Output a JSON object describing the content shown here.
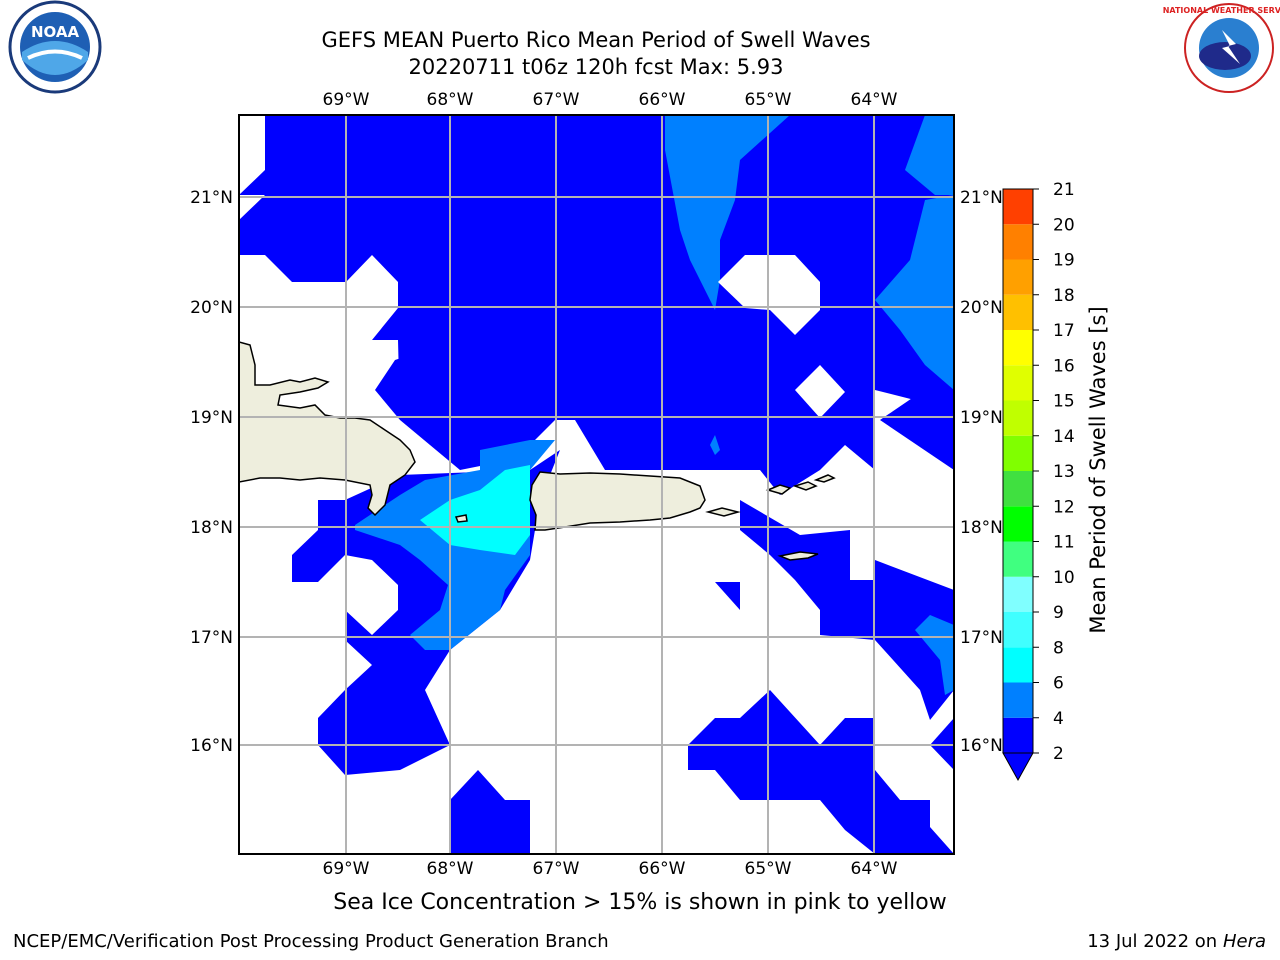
{
  "header": {
    "title_line1": "GEFS MEAN Puerto Rico Mean Period of Swell Waves",
    "title_line2": "20220711 t06z 120h fcst   Max: 5.93"
  },
  "logos": {
    "left": "NOAA",
    "right": "NATIONAL WEATHER SERVICE"
  },
  "map": {
    "lon_labels": [
      "69°W",
      "68°W",
      "67°W",
      "66°W",
      "65°W",
      "64°W"
    ],
    "lat_labels": [
      "21°N",
      "20°N",
      "19°N",
      "18°N",
      "17°N",
      "16°N"
    ],
    "colors": {
      "band_2_4": "#0000ff",
      "band_4_6_outer": "#0080ff",
      "band_4_6_inner": "#00ffff",
      "land": "#eeeedd",
      "grid": "#b3b3b3"
    }
  },
  "colorbar": {
    "title": "Mean Period of Swell Waves [s]",
    "levels": [
      "2",
      "4",
      "6",
      "8",
      "9",
      "10",
      "11",
      "12",
      "13",
      "14",
      "15",
      "16",
      "17",
      "18",
      "19",
      "20",
      "21"
    ],
    "colors": [
      "#0000ff",
      "#0080ff",
      "#00ffff",
      "#40ffff",
      "#80ffff",
      "#40ff80",
      "#00ff00",
      "#40e040",
      "#80ff00",
      "#c0ff00",
      "#e0ff00",
      "#ffff00",
      "#ffc000",
      "#ffa000",
      "#ff8000",
      "#ff4000",
      "#ff0000"
    ]
  },
  "caption": "Sea Ice Concentration > 15% is shown in pink to yellow",
  "footer": {
    "left": "NCEP/EMC/Verification Post Processing Product Generation Branch",
    "right_prefix": "13 Jul 2022 on ",
    "right_host": "Hera"
  }
}
